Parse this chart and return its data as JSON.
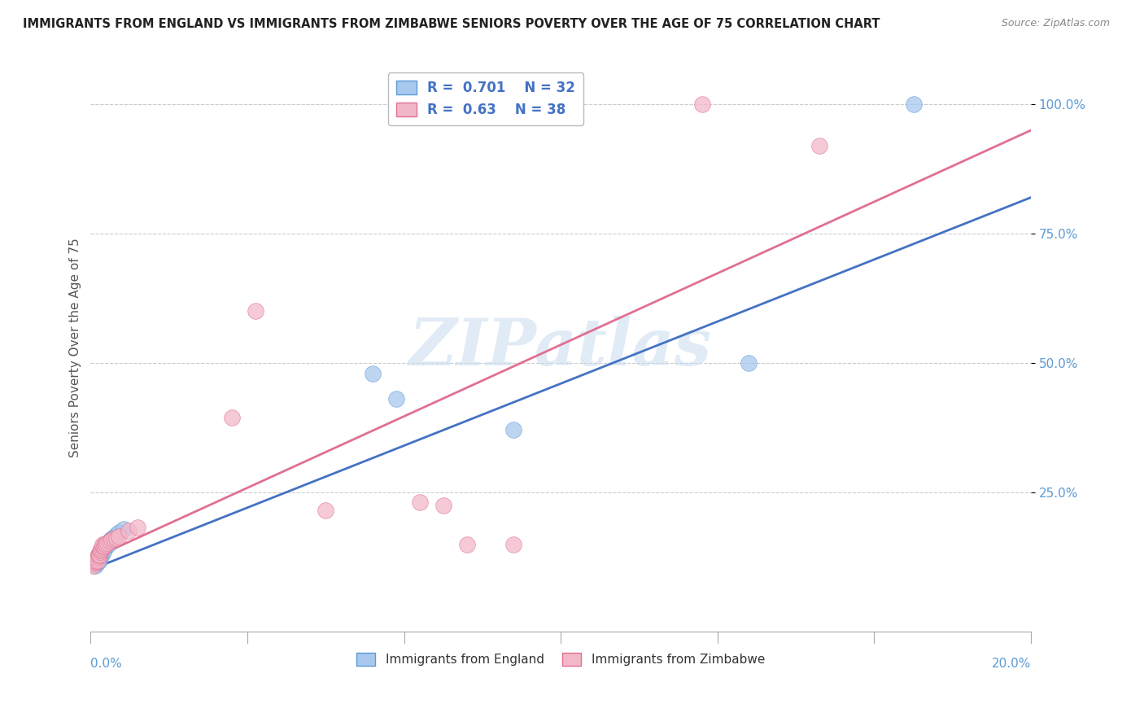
{
  "title": "IMMIGRANTS FROM ENGLAND VS IMMIGRANTS FROM ZIMBABWE SENIORS POVERTY OVER THE AGE OF 75 CORRELATION CHART",
  "source": "Source: ZipAtlas.com",
  "ylabel": "Seniors Poverty Over the Age of 75",
  "ytick_labels": [
    "100.0%",
    "75.0%",
    "50.0%",
    "25.0%"
  ],
  "ytick_values": [
    1.0,
    0.75,
    0.5,
    0.25
  ],
  "xlim": [
    0,
    0.2
  ],
  "ylim": [
    -0.02,
    1.08
  ],
  "england_color": "#A8C8EE",
  "england_edge": "#5B9BD5",
  "zimbabwe_color": "#F2B8C8",
  "zimbabwe_edge": "#E07090",
  "england_R": 0.701,
  "england_N": 32,
  "zimbabwe_R": 0.63,
  "zimbabwe_N": 38,
  "england_line_color": "#4472C4",
  "zimbabwe_line_color": "#E07090",
  "legend_text_color": "#4472C4",
  "ytick_color": "#5B9BD5",
  "xtick_color": "#5B9BD5",
  "watermark": "ZIPatlas",
  "background_color": "#FFFFFF",
  "england_scatter": [
    [
      0.0008,
      0.115
    ],
    [
      0.001,
      0.108
    ],
    [
      0.0012,
      0.118
    ],
    [
      0.0013,
      0.112
    ],
    [
      0.0015,
      0.12
    ],
    [
      0.0016,
      0.125
    ],
    [
      0.0018,
      0.118
    ],
    [
      0.0019,
      0.122
    ],
    [
      0.002,
      0.128
    ],
    [
      0.0021,
      0.13
    ],
    [
      0.0022,
      0.132
    ],
    [
      0.0023,
      0.128
    ],
    [
      0.0025,
      0.135
    ],
    [
      0.0026,
      0.14
    ],
    [
      0.0028,
      0.138
    ],
    [
      0.003,
      0.145
    ],
    [
      0.0032,
      0.148
    ],
    [
      0.0034,
      0.15
    ],
    [
      0.0036,
      0.152
    ],
    [
      0.0038,
      0.148
    ],
    [
      0.004,
      0.155
    ],
    [
      0.0042,
      0.158
    ],
    [
      0.0045,
      0.16
    ],
    [
      0.005,
      0.163
    ],
    [
      0.0055,
      0.168
    ],
    [
      0.006,
      0.172
    ],
    [
      0.007,
      0.178
    ],
    [
      0.06,
      0.48
    ],
    [
      0.065,
      0.43
    ],
    [
      0.09,
      0.37
    ],
    [
      0.14,
      0.5
    ],
    [
      0.175,
      1.0
    ]
  ],
  "zimbabwe_scatter": [
    [
      0.0005,
      0.108
    ],
    [
      0.0007,
      0.112
    ],
    [
      0.0009,
      0.115
    ],
    [
      0.001,
      0.118
    ],
    [
      0.0012,
      0.12
    ],
    [
      0.0013,
      0.122
    ],
    [
      0.0014,
      0.118
    ],
    [
      0.0015,
      0.125
    ],
    [
      0.0016,
      0.128
    ],
    [
      0.0017,
      0.13
    ],
    [
      0.0018,
      0.132
    ],
    [
      0.0019,
      0.128
    ],
    [
      0.002,
      0.135
    ],
    [
      0.0021,
      0.138
    ],
    [
      0.0022,
      0.14
    ],
    [
      0.0024,
      0.142
    ],
    [
      0.0025,
      0.145
    ],
    [
      0.0026,
      0.148
    ],
    [
      0.0028,
      0.145
    ],
    [
      0.003,
      0.15
    ],
    [
      0.0032,
      0.148
    ],
    [
      0.0035,
      0.152
    ],
    [
      0.004,
      0.155
    ],
    [
      0.0045,
      0.158
    ],
    [
      0.005,
      0.16
    ],
    [
      0.0055,
      0.162
    ],
    [
      0.006,
      0.165
    ],
    [
      0.008,
      0.175
    ],
    [
      0.01,
      0.182
    ],
    [
      0.03,
      0.395
    ],
    [
      0.035,
      0.6
    ],
    [
      0.05,
      0.215
    ],
    [
      0.07,
      0.23
    ],
    [
      0.075,
      0.225
    ],
    [
      0.08,
      0.148
    ],
    [
      0.09,
      0.148
    ],
    [
      0.13,
      1.0
    ],
    [
      0.155,
      0.92
    ]
  ],
  "eng_line_x0": 0.0,
  "eng_line_y0": 0.1,
  "eng_line_x1": 0.2,
  "eng_line_y1": 0.82,
  "zim_line_x0": 0.0,
  "zim_line_y0": 0.12,
  "zim_line_x1": 0.2,
  "zim_line_y1": 0.95
}
